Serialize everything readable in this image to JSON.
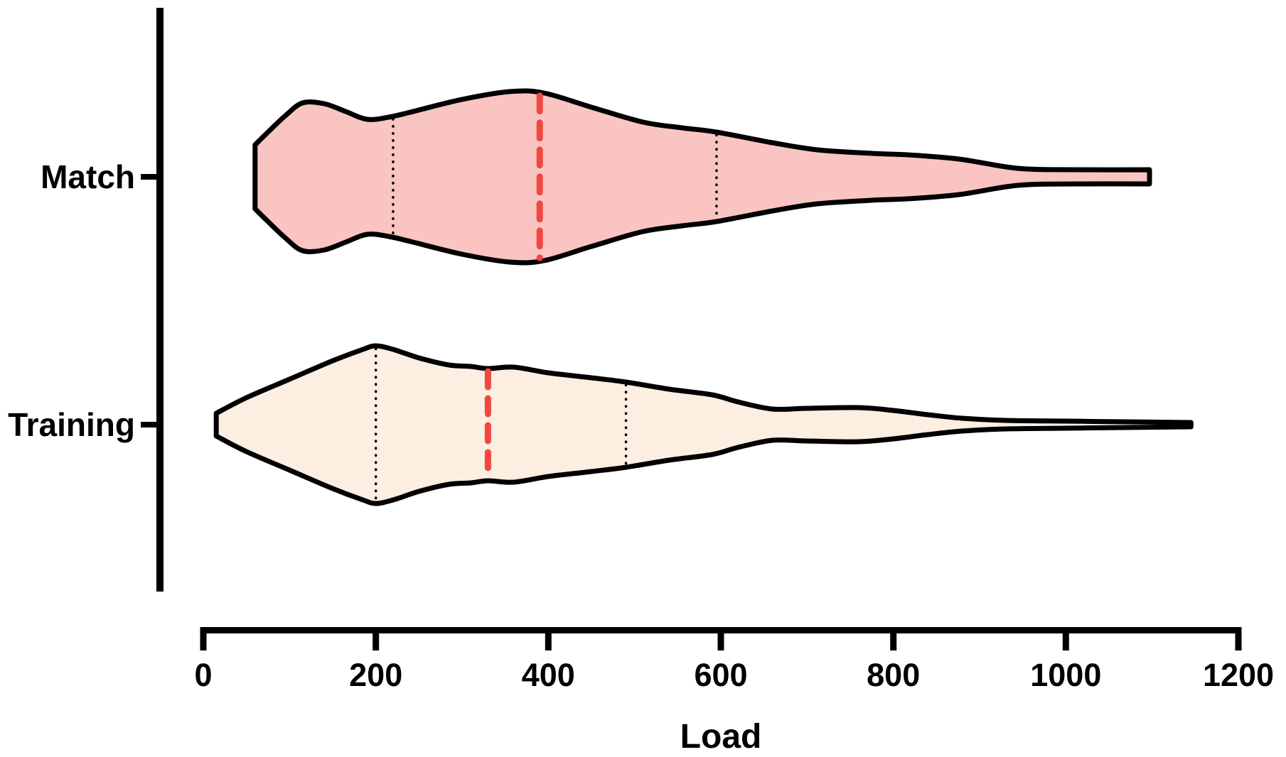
{
  "chart_data": {
    "type": "violin",
    "orientation": "horizontal",
    "xlabel": "Load",
    "xlim": [
      0,
      1200
    ],
    "x_ticks": [
      0,
      200,
      400,
      600,
      800,
      1000,
      1200
    ],
    "categories": [
      "Match",
      "Training"
    ],
    "grid": false,
    "legend": "none",
    "colors": {
      "match_fill": "#F9C4C2",
      "training_fill": "#FCEEE1",
      "outline": "#000000",
      "median_line": "#F04840",
      "quartile_line": "#000000",
      "axis": "#000000"
    },
    "series": [
      {
        "name": "Match",
        "min": 60,
        "q1": 220,
        "median": 390,
        "q3": 595,
        "max": 1100,
        "fill_key": "match_fill",
        "density_profile": [
          [
            60,
            45
          ],
          [
            75,
            63
          ],
          [
            95,
            86
          ],
          [
            115,
            104
          ],
          [
            140,
            103
          ],
          [
            165,
            92
          ],
          [
            190,
            81
          ],
          [
            215,
            84
          ],
          [
            240,
            91
          ],
          [
            300,
            109
          ],
          [
            355,
            120
          ],
          [
            395,
            118
          ],
          [
            450,
            98
          ],
          [
            510,
            77
          ],
          [
            555,
            69
          ],
          [
            595,
            63
          ],
          [
            660,
            48
          ],
          [
            712,
            38
          ],
          [
            775,
            33
          ],
          [
            816,
            31
          ],
          [
            876,
            25
          ],
          [
            944,
            12
          ],
          [
            1010,
            10
          ],
          [
            1097,
            10
          ]
        ]
      },
      {
        "name": "Training",
        "min": 15,
        "q1": 200,
        "median": 330,
        "q3": 490,
        "max": 1145,
        "fill_key": "training_fill",
        "density_profile": [
          [
            15,
            16
          ],
          [
            50,
            38
          ],
          [
            100,
            64
          ],
          [
            150,
            90
          ],
          [
            185,
            106
          ],
          [
            200,
            111
          ],
          [
            220,
            106
          ],
          [
            250,
            94
          ],
          [
            285,
            84
          ],
          [
            310,
            82
          ],
          [
            330,
            79
          ],
          [
            360,
            81
          ],
          [
            400,
            73
          ],
          [
            450,
            66
          ],
          [
            490,
            60
          ],
          [
            540,
            50
          ],
          [
            590,
            42
          ],
          [
            620,
            32
          ],
          [
            660,
            22
          ],
          [
            700,
            23
          ],
          [
            760,
            24
          ],
          [
            800,
            20
          ],
          [
            840,
            14
          ],
          [
            880,
            9
          ],
          [
            930,
            6
          ],
          [
            1000,
            5
          ],
          [
            1070,
            4
          ],
          [
            1145,
            3
          ]
        ]
      }
    ]
  }
}
